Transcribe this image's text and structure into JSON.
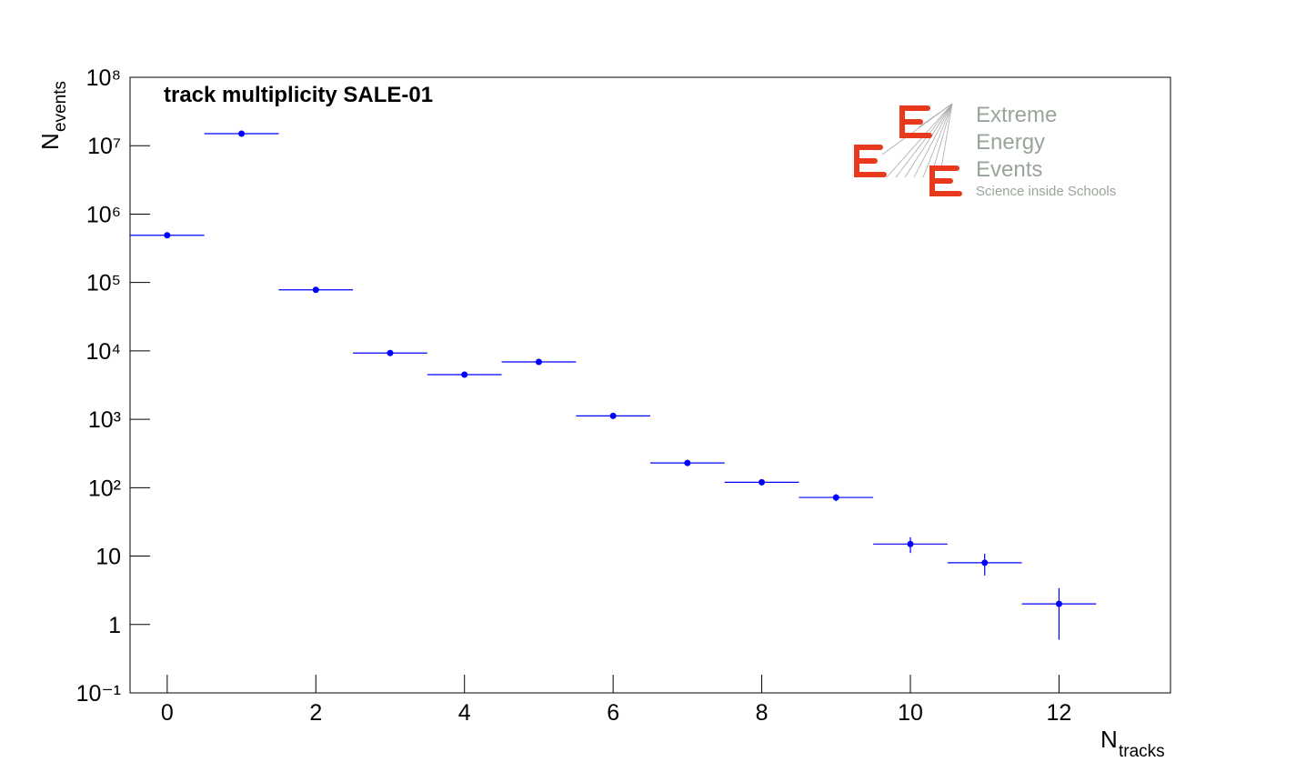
{
  "chart_data": {
    "type": "errorbar",
    "title": "track multiplicity SALE-01",
    "xlabel": "N",
    "xlabel_sub": "tracks",
    "ylabel": "N",
    "ylabel_sub": "events",
    "x": [
      0,
      1,
      2,
      3,
      4,
      5,
      6,
      7,
      8,
      9,
      10,
      11,
      12
    ],
    "values": [
      490000,
      15000000,
      78000,
      9300,
      4500,
      6900,
      1120,
      230,
      120,
      72,
      15,
      8,
      2
    ],
    "errors": [
      700,
      3900,
      280,
      96,
      67,
      83,
      33,
      15,
      11,
      8.5,
      3.9,
      2.8,
      1.4
    ],
    "color": "#0000ff",
    "xlim": [
      -0.5,
      13.5
    ],
    "xticks": [
      0,
      2,
      4,
      6,
      8,
      10,
      12
    ],
    "ylim": [
      0.1,
      100000000
    ],
    "log_y": true,
    "yticks": [
      {
        "value": 0.1,
        "label": "10⁻¹"
      },
      1,
      10,
      {
        "value": 100,
        "label": "10²"
      },
      {
        "value": 1000,
        "label": "10³"
      },
      {
        "value": 10000,
        "label": "10⁴"
      },
      {
        "value": 100000,
        "label": "10⁵"
      },
      {
        "value": 1000000,
        "label": "10⁶"
      },
      {
        "value": 10000000,
        "label": "10⁷"
      },
      {
        "value": 100000000,
        "label": "10⁸"
      }
    ],
    "logo": {
      "lines": [
        "Extreme",
        "Energy",
        "Events"
      ],
      "tagline": "Science inside Schools"
    }
  }
}
